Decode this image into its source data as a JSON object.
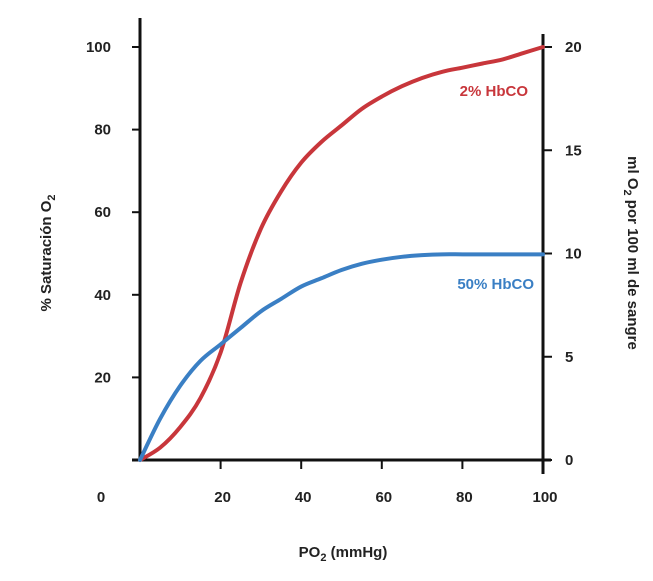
{
  "chart_data": {
    "type": "line",
    "title": "",
    "xlabel": "PO",
    "xlabel_sub": "2",
    "xlabel_rest": " (mmHg)",
    "ylabel": "% Saturación O",
    "ylabel_sub": "2",
    "y2label": "ml O",
    "y2label_sub": "2",
    "y2label_rest": " por 100 ml de sangre",
    "xlim": [
      0,
      100
    ],
    "ylim": [
      0,
      100
    ],
    "y2lim": [
      0,
      20
    ],
    "x_ticks": [
      20,
      40,
      60,
      80,
      100
    ],
    "x_zero_label": "0",
    "y_ticks": [
      20,
      40,
      60,
      80,
      100
    ],
    "y2_ticks": [
      0,
      5,
      10,
      15,
      20
    ],
    "grid": false,
    "series": [
      {
        "name": "2% HbCO",
        "color": "#c8363b",
        "x": [
          0,
          5,
          10,
          15,
          20,
          25,
          30,
          35,
          40,
          45,
          50,
          55,
          60,
          65,
          70,
          75,
          80,
          85,
          90,
          95,
          100
        ],
        "y": [
          0,
          3,
          8,
          15,
          26,
          43,
          56,
          65,
          72,
          77,
          81,
          85,
          88,
          90.5,
          92.5,
          94,
          95,
          96,
          97,
          98.5,
          100
        ]
      },
      {
        "name": "50% HbCO",
        "color": "#3a7fc4",
        "x": [
          0,
          5,
          10,
          15,
          20,
          25,
          30,
          35,
          40,
          45,
          50,
          55,
          60,
          65,
          70,
          75,
          80,
          85,
          90,
          95,
          100
        ],
        "y": [
          0,
          10,
          18,
          24,
          28,
          32,
          36,
          39,
          42,
          44,
          46,
          47.5,
          48.5,
          49.2,
          49.6,
          49.8,
          49.8,
          49.8,
          49.8,
          49.8,
          49.8
        ]
      }
    ]
  }
}
